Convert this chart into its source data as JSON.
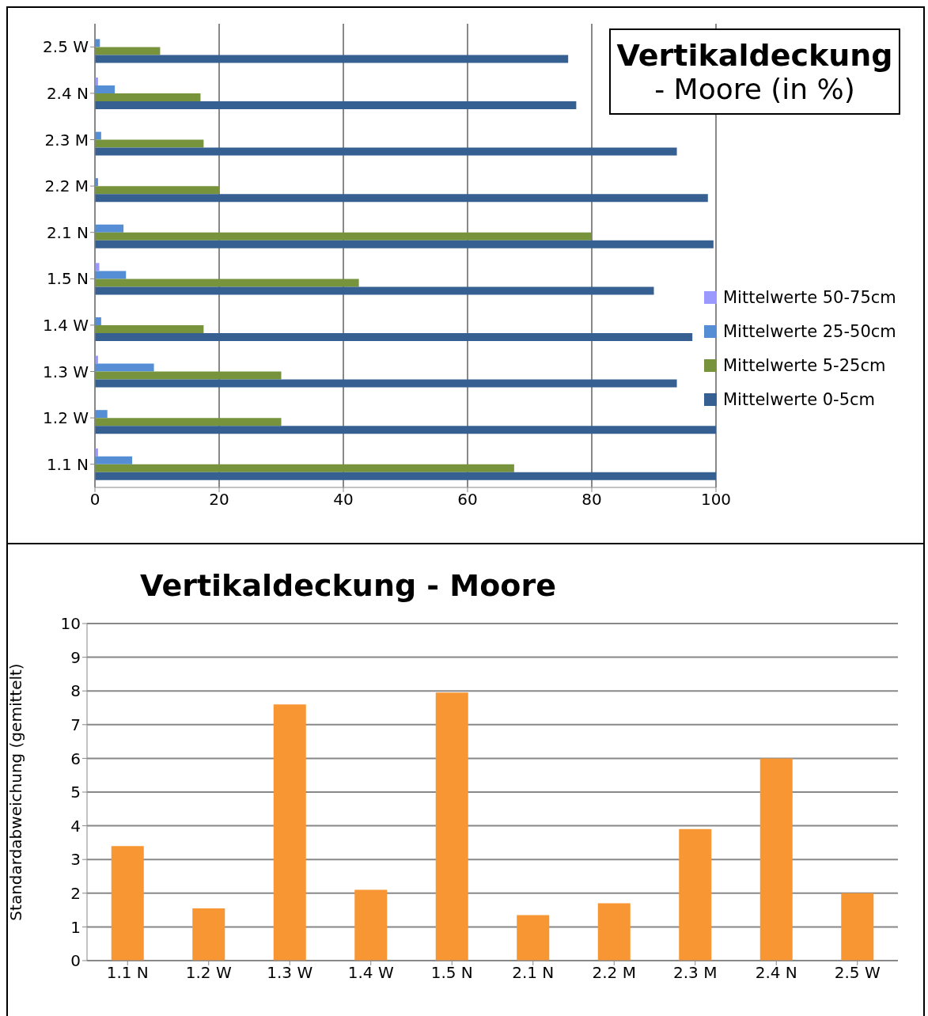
{
  "chart_data": [
    {
      "type": "bar",
      "orientation": "horizontal",
      "title": "Vertikaldeckung",
      "subtitle": "- Moore (in %)",
      "categories": [
        "2.5 W",
        "2.4 N",
        "2.3 M",
        "2.2 M",
        "2.1 N",
        "1.5 N",
        "1.4 W",
        "1.3 W",
        "1.2 W",
        "1.1 N"
      ],
      "series": [
        {
          "name": "Mittelwerte 50-75cm",
          "color": "#9999ff",
          "values": [
            0,
            0.5,
            0,
            0,
            0,
            0.7,
            0,
            0.5,
            0,
            0.5
          ]
        },
        {
          "name": "Mittelwerte 25-50cm",
          "color": "#558ed5",
          "values": [
            0.8,
            3.2,
            1,
            0.5,
            4.6,
            5,
            1,
            9.5,
            2,
            6
          ]
        },
        {
          "name": "Mittelwerte 5-25cm",
          "color": "#77933c",
          "values": [
            10.5,
            17,
            17.5,
            20,
            80,
            42.5,
            17.5,
            30,
            30,
            67.5
          ]
        },
        {
          "name": "Mittelwerte 0-5cm",
          "color": "#376092",
          "values": [
            76.2,
            77.5,
            93.7,
            98.7,
            99.6,
            90,
            96.2,
            93.7,
            100,
            100
          ]
        }
      ],
      "xlim": [
        0,
        100
      ],
      "xticks": [
        0,
        20,
        40,
        60,
        80,
        100
      ],
      "grid": "x",
      "legend": "right"
    },
    {
      "type": "bar",
      "title": "Vertikaldeckung - Moore",
      "ylabel": "Standardabweichung (gemittelt)",
      "categories": [
        "1.1 N",
        "1.2 W",
        "1.3 W",
        "1.4 W",
        "1.5 N",
        "2.1 N",
        "2.2 M",
        "2.3 M",
        "2.4 N",
        "2.5 W"
      ],
      "values": [
        3.4,
        1.55,
        7.6,
        2.1,
        7.95,
        1.35,
        1.7,
        3.9,
        6.0,
        2.0
      ],
      "color": "#f79632",
      "ylim": [
        0,
        10
      ],
      "yticks": [
        0,
        1,
        2,
        3,
        4,
        5,
        6,
        7,
        8,
        9,
        10
      ],
      "grid": "y"
    }
  ]
}
